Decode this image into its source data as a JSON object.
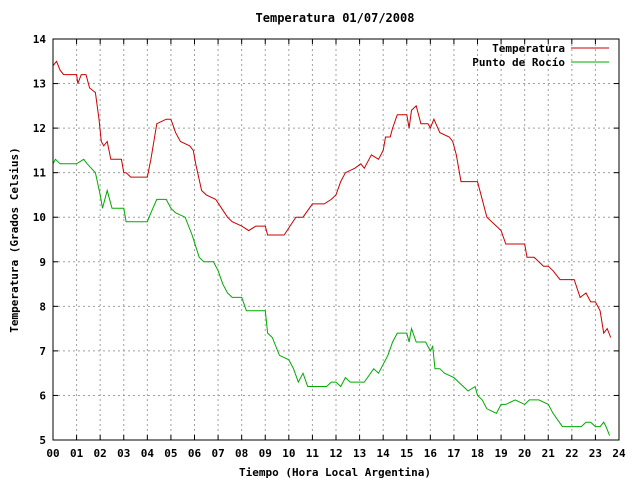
{
  "chart_data": {
    "type": "line",
    "title": "Temperatura 01/07/2008",
    "xlabel": "Tiempo (Hora Local Argentina)",
    "ylabel": "Temperatura (Grados Celsius)",
    "xlim": [
      0,
      24
    ],
    "ylim": [
      5,
      14
    ],
    "x_ticks": [
      "00",
      "01",
      "02",
      "03",
      "04",
      "05",
      "06",
      "07",
      "08",
      "09",
      "10",
      "11",
      "12",
      "13",
      "14",
      "15",
      "16",
      "17",
      "18",
      "19",
      "20",
      "21",
      "22",
      "23",
      "24"
    ],
    "y_ticks": [
      "5",
      "6",
      "7",
      "8",
      "9",
      "10",
      "11",
      "12",
      "13",
      "14"
    ],
    "grid": true,
    "legend_position": "top-right",
    "series": [
      {
        "name": "Temperatura",
        "color": "#cc0000",
        "x": [
          0,
          0.15,
          0.3,
          0.45,
          0.6,
          1.0,
          1.05,
          1.2,
          1.4,
          1.55,
          1.8,
          1.95,
          2.05,
          2.15,
          2.3,
          2.45,
          2.6,
          2.9,
          3.0,
          3.1,
          3.3,
          4.0,
          4.15,
          4.4,
          4.8,
          5.0,
          5.2,
          5.4,
          5.8,
          5.95,
          6.05,
          6.3,
          6.5,
          6.9,
          7.15,
          7.4,
          7.6,
          8.0,
          8.3,
          8.6,
          9.0,
          9.1,
          9.4,
          9.8,
          10.05,
          10.3,
          10.6,
          11.0,
          11.5,
          11.8,
          12.0,
          12.2,
          12.4,
          12.8,
          13.05,
          13.2,
          13.5,
          13.8,
          14.0,
          14.1,
          14.3,
          14.4,
          14.6,
          15.0,
          15.1,
          15.2,
          15.4,
          15.6,
          15.9,
          16.0,
          16.15,
          16.4,
          16.8,
          16.95,
          17.1,
          17.3,
          17.6,
          18.0,
          18.2,
          18.4,
          18.8,
          19.0,
          19.2,
          19.6,
          20.0,
          20.1,
          20.4,
          20.8,
          21.0,
          21.2,
          21.5,
          22.0,
          22.1,
          22.35,
          22.6,
          22.8,
          23.0,
          23.2,
          23.35,
          23.5,
          23.65
        ],
        "values": [
          13.4,
          13.5,
          13.3,
          13.2,
          13.2,
          13.2,
          13.0,
          13.2,
          13.2,
          12.9,
          12.8,
          12.2,
          11.7,
          11.6,
          11.7,
          11.3,
          11.3,
          11.3,
          11.0,
          11.0,
          10.9,
          10.9,
          11.3,
          12.1,
          12.2,
          12.2,
          11.9,
          11.7,
          11.6,
          11.5,
          11.2,
          10.6,
          10.5,
          10.4,
          10.2,
          10.0,
          9.9,
          9.8,
          9.7,
          9.8,
          9.8,
          9.6,
          9.6,
          9.6,
          9.8,
          10.0,
          10.0,
          10.3,
          10.3,
          10.4,
          10.5,
          10.8,
          11.0,
          11.1,
          11.2,
          11.1,
          11.4,
          11.3,
          11.5,
          11.8,
          11.8,
          12.0,
          12.3,
          12.3,
          12.0,
          12.4,
          12.5,
          12.1,
          12.1,
          12.0,
          12.2,
          11.9,
          11.8,
          11.7,
          11.4,
          10.8,
          10.8,
          10.8,
          10.4,
          10.0,
          9.8,
          9.7,
          9.4,
          9.4,
          9.4,
          9.1,
          9.1,
          8.9,
          8.9,
          8.8,
          8.6,
          8.6,
          8.6,
          8.2,
          8.3,
          8.1,
          8.1,
          7.9,
          7.4,
          7.5,
          7.3
        ]
      },
      {
        "name": "Punto de Rocío",
        "color": "#00aa00",
        "x": [
          0,
          0.1,
          0.3,
          0.5,
          1.0,
          1.3,
          1.45,
          1.8,
          2.0,
          2.1,
          2.3,
          2.5,
          2.7,
          3.0,
          3.1,
          3.3,
          4.0,
          4.15,
          4.4,
          4.8,
          5.0,
          5.2,
          5.6,
          5.9,
          6.2,
          6.4,
          6.8,
          7.0,
          7.2,
          7.4,
          7.6,
          8.0,
          8.2,
          8.6,
          9.0,
          9.1,
          9.3,
          9.6,
          10.0,
          10.2,
          10.4,
          10.6,
          10.8,
          11.2,
          11.6,
          11.8,
          12.0,
          12.2,
          12.4,
          12.6,
          13.0,
          13.2,
          13.6,
          13.8,
          14.0,
          14.2,
          14.4,
          14.6,
          15.0,
          15.1,
          15.2,
          15.4,
          15.8,
          16.0,
          16.1,
          16.2,
          16.4,
          16.6,
          17.0,
          17.2,
          17.6,
          17.9,
          18.0,
          18.2,
          18.4,
          18.8,
          19.0,
          19.2,
          19.6,
          20.0,
          20.2,
          20.6,
          21.0,
          21.2,
          21.6,
          22.0,
          22.4,
          22.6,
          22.8,
          23.0,
          23.2,
          23.35,
          23.45,
          23.6
        ],
        "values": [
          11.2,
          11.3,
          11.2,
          11.2,
          11.2,
          11.3,
          11.2,
          11.0,
          10.5,
          10.2,
          10.6,
          10.2,
          10.2,
          10.2,
          9.9,
          9.9,
          9.9,
          10.1,
          10.4,
          10.4,
          10.2,
          10.1,
          10.0,
          9.6,
          9.1,
          9.0,
          9.0,
          8.8,
          8.5,
          8.3,
          8.2,
          8.2,
          7.9,
          7.9,
          7.9,
          7.4,
          7.3,
          6.9,
          6.8,
          6.6,
          6.3,
          6.5,
          6.2,
          6.2,
          6.2,
          6.3,
          6.3,
          6.2,
          6.4,
          6.3,
          6.3,
          6.3,
          6.6,
          6.5,
          6.7,
          6.9,
          7.2,
          7.4,
          7.4,
          7.2,
          7.5,
          7.2,
          7.2,
          7.0,
          7.1,
          6.6,
          6.6,
          6.5,
          6.4,
          6.3,
          6.1,
          6.2,
          6.0,
          5.9,
          5.7,
          5.6,
          5.8,
          5.8,
          5.9,
          5.8,
          5.9,
          5.9,
          5.8,
          5.6,
          5.3,
          5.3,
          5.3,
          5.4,
          5.4,
          5.3,
          5.3,
          5.4,
          5.3,
          5.1
        ]
      }
    ]
  }
}
